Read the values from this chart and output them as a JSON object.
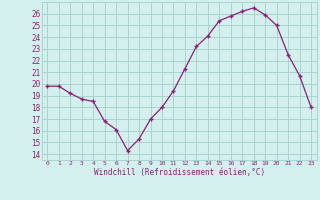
{
  "x": [
    0,
    1,
    2,
    3,
    4,
    5,
    6,
    7,
    8,
    9,
    10,
    11,
    12,
    13,
    14,
    15,
    16,
    17,
    18,
    19,
    20,
    21,
    22,
    23
  ],
  "y": [
    19.8,
    19.8,
    19.2,
    18.7,
    18.5,
    16.8,
    16.1,
    14.3,
    15.3,
    17.0,
    18.0,
    19.4,
    21.3,
    23.2,
    24.1,
    25.4,
    25.8,
    26.2,
    26.5,
    25.9,
    25.0,
    22.5,
    20.7,
    18.0
  ],
  "xlabel": "Windchill (Refroidissement éolien,°C)",
  "ylim": [
    13.5,
    27.0
  ],
  "yticks": [
    14,
    15,
    16,
    17,
    18,
    19,
    20,
    21,
    22,
    23,
    24,
    25,
    26
  ],
  "xticks": [
    0,
    1,
    2,
    3,
    4,
    5,
    6,
    7,
    8,
    9,
    10,
    11,
    12,
    13,
    14,
    15,
    16,
    17,
    18,
    19,
    20,
    21,
    22,
    23
  ],
  "line_color": "#882277",
  "marker": "+",
  "bg_color": "#d4f0ee",
  "grid_color": "#aad4d0",
  "tick_label_color": "#882277",
  "xlabel_color": "#882277"
}
